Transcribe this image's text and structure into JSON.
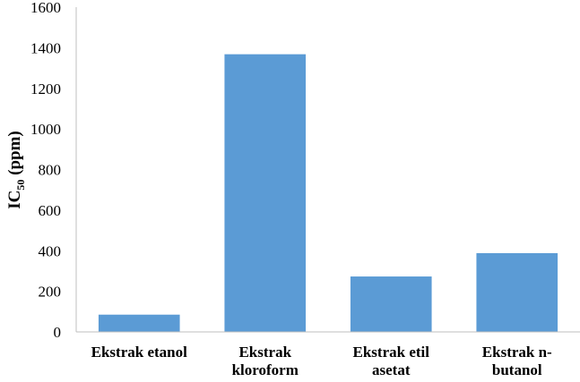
{
  "chart_data": {
    "type": "bar",
    "categories": [
      [
        "Ekstrak etanol"
      ],
      [
        "Ekstrak",
        "kloroform"
      ],
      [
        "Ekstrak etil",
        "asetat"
      ],
      [
        "Ekstrak n-",
        "butanol"
      ]
    ],
    "series": [
      {
        "values": [
          85,
          1368,
          273,
          388
        ],
        "color": "#5b9bd5"
      }
    ],
    "ylabel": {
      "main": "IC",
      "sub": "50",
      "rest": " (ppm)"
    },
    "ylim": [
      0,
      1600
    ],
    "yticks": [
      "0",
      "200",
      "400",
      "600",
      "800",
      "1000",
      "1200",
      "1400",
      "1600"
    ],
    "grid": false,
    "legend": "none"
  }
}
